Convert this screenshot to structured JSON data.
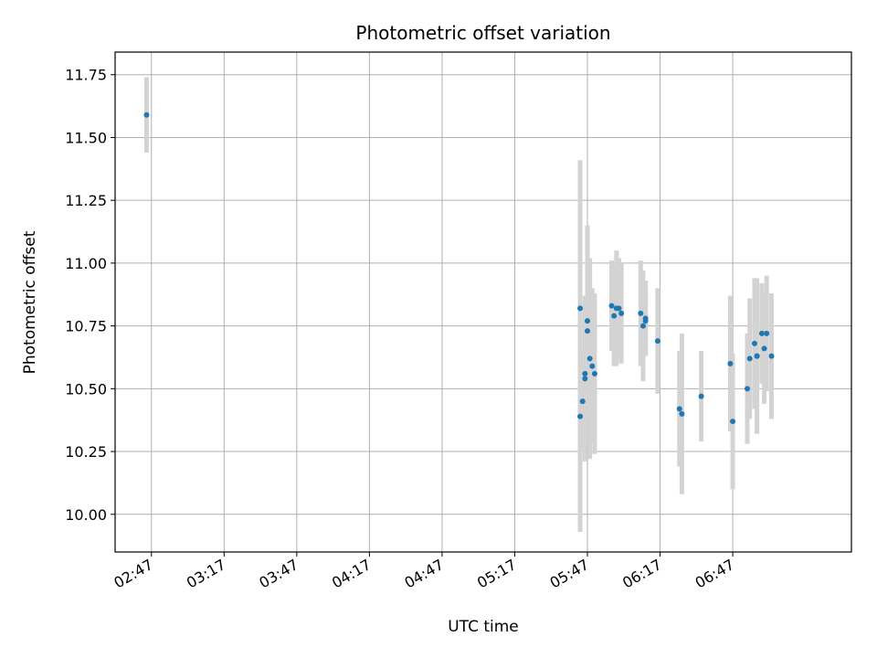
{
  "chart_data": {
    "type": "scatter",
    "title": "Photometric offset variation",
    "xlabel": "UTC time",
    "ylabel": "Photometric offset",
    "xlim": [
      "02:32",
      "07:36"
    ],
    "ylim": [
      9.85,
      11.84
    ],
    "xticks": [
      "02:47",
      "03:17",
      "03:47",
      "04:17",
      "04:47",
      "05:17",
      "05:47",
      "06:17",
      "06:47"
    ],
    "yticks": [
      "10.00",
      "10.25",
      "10.50",
      "10.75",
      "11.00",
      "11.25",
      "11.50",
      "11.75"
    ],
    "grid": true,
    "colors": {
      "point": "#1f77b4",
      "errorbar": "#d3d3d3",
      "grid": "#b0b0b0"
    },
    "points": [
      {
        "x": "02:45",
        "y": 11.59,
        "err": 0.15
      },
      {
        "x": "05:44",
        "y": 10.82,
        "err": 0.59
      },
      {
        "x": "05:44",
        "y": 10.39,
        "err": 0.46
      },
      {
        "x": "05:45",
        "y": 10.45,
        "err": 0.2
      },
      {
        "x": "05:46",
        "y": 10.54,
        "err": 0.33
      },
      {
        "x": "05:46",
        "y": 10.56,
        "err": 0.28
      },
      {
        "x": "05:47",
        "y": 10.77,
        "err": 0.38
      },
      {
        "x": "05:47",
        "y": 10.73,
        "err": 0.28
      },
      {
        "x": "05:48",
        "y": 10.62,
        "err": 0.4
      },
      {
        "x": "05:49",
        "y": 10.59,
        "err": 0.31
      },
      {
        "x": "05:50",
        "y": 10.56,
        "err": 0.32
      },
      {
        "x": "05:57",
        "y": 10.83,
        "err": 0.18
      },
      {
        "x": "05:58",
        "y": 10.79,
        "err": 0.2
      },
      {
        "x": "05:59",
        "y": 10.82,
        "err": 0.23
      },
      {
        "x": "06:00",
        "y": 10.82,
        "err": 0.2
      },
      {
        "x": "06:01",
        "y": 10.8,
        "err": 0.2
      },
      {
        "x": "06:09",
        "y": 10.8,
        "err": 0.21
      },
      {
        "x": "06:10",
        "y": 10.75,
        "err": 0.22
      },
      {
        "x": "06:11",
        "y": 10.77,
        "err": 0.13
      },
      {
        "x": "06:11",
        "y": 10.78,
        "err": 0.15
      },
      {
        "x": "06:16",
        "y": 10.69,
        "err": 0.21
      },
      {
        "x": "06:25",
        "y": 10.42,
        "err": 0.23
      },
      {
        "x": "06:26",
        "y": 10.4,
        "err": 0.32
      },
      {
        "x": "06:34",
        "y": 10.47,
        "err": 0.18
      },
      {
        "x": "06:46",
        "y": 10.6,
        "err": 0.27
      },
      {
        "x": "06:47",
        "y": 10.37,
        "err": 0.27
      },
      {
        "x": "06:53",
        "y": 10.5,
        "err": 0.22
      },
      {
        "x": "06:54",
        "y": 10.62,
        "err": 0.24
      },
      {
        "x": "06:56",
        "y": 10.68,
        "err": 0.26
      },
      {
        "x": "06:57",
        "y": 10.63,
        "err": 0.31
      },
      {
        "x": "06:57",
        "y": 10.63,
        "err": 0.22
      },
      {
        "x": "06:59",
        "y": 10.72,
        "err": 0.2
      },
      {
        "x": "07:00",
        "y": 10.66,
        "err": 0.22
      },
      {
        "x": "07:01",
        "y": 10.72,
        "err": 0.23
      },
      {
        "x": "07:03",
        "y": 10.63,
        "err": 0.25
      }
    ]
  }
}
